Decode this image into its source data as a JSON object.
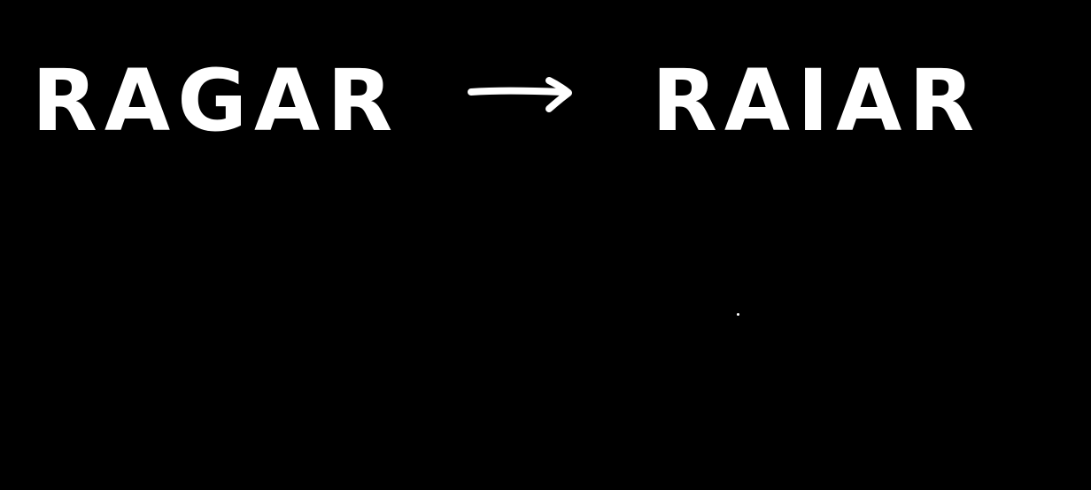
{
  "canvas": {
    "background_color": "#000000",
    "ink_color": "#ffffff"
  },
  "left_word": "RAGAR",
  "right_word": "RAIAR",
  "arrow": {
    "icon": "right-arrow-icon"
  }
}
